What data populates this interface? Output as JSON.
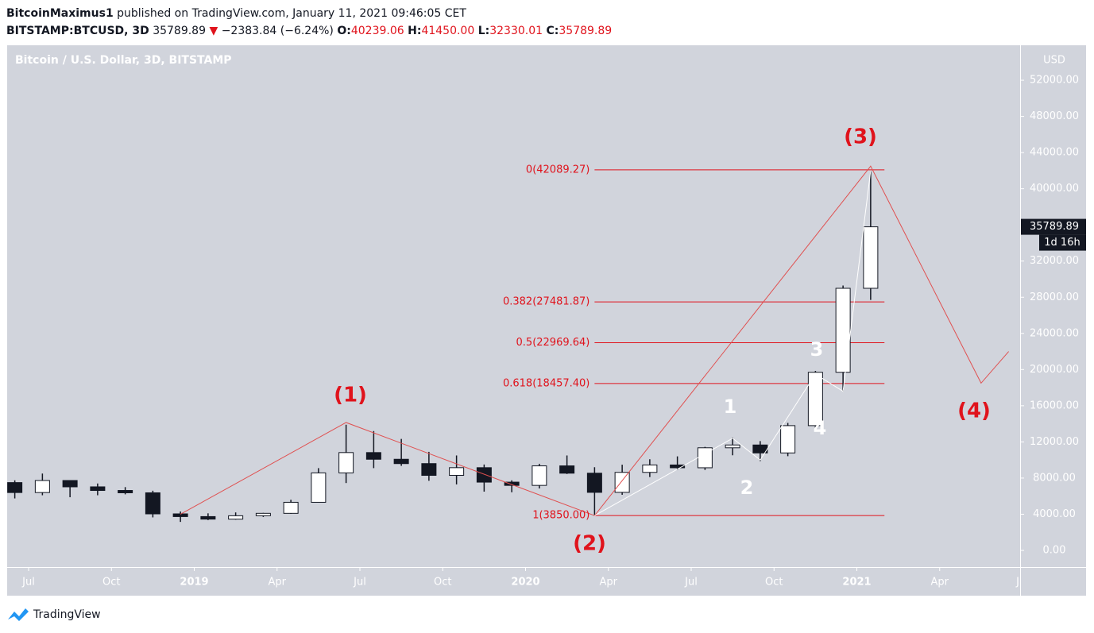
{
  "header": {
    "author": "BitcoinMaximus1",
    "published": "published on TradingView.com, January 11, 2021 09:46:05 CET",
    "symbol": "BITSTAMP:BTCUSD, 3D",
    "last": "35789.89",
    "arrow": "▼",
    "change": "−2383.84 (−6.24%)",
    "ohlc": [
      {
        "label": "O:",
        "value": "40239.06"
      },
      {
        "label": "H:",
        "value": "41450.00"
      },
      {
        "label": "L:",
        "value": "32330.01"
      },
      {
        "label": "C:",
        "value": "35789.89"
      }
    ]
  },
  "chart_data": {
    "type": "candlestick",
    "title": "Bitcoin / U.S. Dollar, 3D, BITSTAMP",
    "y_unit": "USD",
    "x": [
      "2018-06",
      "2018-07",
      "2018-08",
      "2018-09",
      "2018-10",
      "2018-11",
      "2018-12",
      "2019-01",
      "2019-02",
      "2019-03",
      "2019-04",
      "2019-05",
      "2019-06",
      "2019-07",
      "2019-08",
      "2019-09",
      "2019-10",
      "2019-11",
      "2019-12",
      "2020-01",
      "2020-02",
      "2020-03",
      "2020-04",
      "2020-05",
      "2020-06",
      "2020-07",
      "2020-08",
      "2020-09",
      "2020-10",
      "2020-11",
      "2020-12",
      "2021-01"
    ],
    "open": [
      7500,
      6400,
      7730,
      7030,
      6630,
      6370,
      4040,
      3740,
      3460,
      3830,
      4100,
      5320,
      8570,
      10820,
      10080,
      9600,
      8300,
      9150,
      7550,
      7190,
      9350,
      8540,
      6420,
      8630,
      9450,
      9140,
      11350,
      11660,
      10780,
      13800,
      19700,
      28990
    ],
    "high": [
      7750,
      8500,
      7760,
      7400,
      7000,
      6600,
      4300,
      4100,
      4200,
      4150,
      5600,
      9100,
      13900,
      13200,
      12330,
      10900,
      10500,
      9500,
      7750,
      9580,
      10500,
      9200,
      9480,
      10080,
      10400,
      11450,
      12480,
      12090,
      14100,
      19850,
      29300,
      41950
    ],
    "low": [
      5750,
      6100,
      5880,
      6100,
      6200,
      3650,
      3150,
      3350,
      3400,
      3700,
      4050,
      5320,
      7450,
      9100,
      9350,
      7700,
      7300,
      6500,
      6430,
      6850,
      8450,
      3850,
      6150,
      8110,
      8900,
      8900,
      10520,
      9880,
      10420,
      13220,
      17600,
      27700
    ],
    "close": [
      6400,
      7730,
      7030,
      6630,
      6370,
      4040,
      3740,
      3460,
      3830,
      4100,
      5320,
      8570,
      10820,
      10080,
      9600,
      8300,
      9150,
      7550,
      7190,
      9350,
      8540,
      6420,
      8630,
      9450,
      9140,
      11350,
      11660,
      10780,
      13800,
      19700,
      28990,
      35789.89
    ],
    "up_color": "#ffffff",
    "down_color": "#131722",
    "ylim": [
      -1845,
      55870
    ],
    "yticks": [
      {
        "value": 0,
        "label": "0.00"
      },
      {
        "value": 4000,
        "label": "4000.00"
      },
      {
        "value": 8000,
        "label": "8000.00"
      },
      {
        "value": 12000,
        "label": "12000.00"
      },
      {
        "value": 16000,
        "label": "16000.00"
      },
      {
        "value": 20000,
        "label": "20000.00"
      },
      {
        "value": 24000,
        "label": "24000.00"
      },
      {
        "value": 28000,
        "label": "28000.00"
      },
      {
        "value": 32000,
        "label": "32000.00"
      },
      {
        "value": 36000,
        "label": "36000.00"
      },
      {
        "value": 40000,
        "label": "40000.00"
      },
      {
        "value": 44000,
        "label": "44000.00"
      },
      {
        "value": 48000,
        "label": "48000.00"
      },
      {
        "value": 52000,
        "label": "52000.00"
      }
    ],
    "xticks": [
      {
        "value": "2018-07",
        "label": "Jul"
      },
      {
        "value": "2018-10",
        "label": "Oct"
      },
      {
        "value": "2019-01",
        "label": "2019"
      },
      {
        "value": "2019-04",
        "label": "Apr"
      },
      {
        "value": "2019-07",
        "label": "Jul"
      },
      {
        "value": "2019-10",
        "label": "Oct"
      },
      {
        "value": "2020-01",
        "label": "2020"
      },
      {
        "value": "2020-04",
        "label": "Apr"
      },
      {
        "value": "2020-07",
        "label": "Jul"
      },
      {
        "value": "2020-10",
        "label": "Oct"
      },
      {
        "value": "2021-01",
        "label": "2021"
      },
      {
        "value": "2021-04",
        "label": "Apr"
      },
      {
        "value": "2021-07",
        "label": "Jul"
      }
    ],
    "price_tag": {
      "value": 35789.89,
      "label": "35789.89",
      "countdown": "1d 16h"
    },
    "fib": {
      "range": [
        "2020-03",
        "2021-01"
      ],
      "color": "#e0131c",
      "levels": [
        {
          "value": 42089.27,
          "label": "0(42089.27)"
        },
        {
          "value": 27481.87,
          "label": "0.382(27481.87)"
        },
        {
          "value": 22969.64,
          "label": "0.5(22969.64)"
        },
        {
          "value": 18457.4,
          "label": "0.618(18457.40)"
        },
        {
          "value": 3850.0,
          "label": "1(3850.00)"
        }
      ]
    },
    "wave_paths": [
      {
        "name": "(1)-(4)",
        "color": "#e05050",
        "x": [
          "2018-12",
          "2019-06",
          "2020-03",
          "2021-01",
          "2021-05",
          "2021-06"
        ],
        "values": [
          4000,
          14145,
          3850,
          42500,
          18500,
          22000
        ]
      },
      {
        "name": "1-4",
        "color": "#ffffff",
        "x": [
          "2020-03",
          "2020-08",
          "2020-09",
          "2020-11",
          "2020-12",
          "2021-01"
        ],
        "values": [
          3850,
          12400,
          10000,
          19500,
          17600,
          42000
        ]
      }
    ],
    "wave_labels": [
      "(1)",
      "(2)",
      "(3)",
      "(4)",
      "1",
      "2",
      "3",
      "4"
    ]
  },
  "footer": "TradingView"
}
